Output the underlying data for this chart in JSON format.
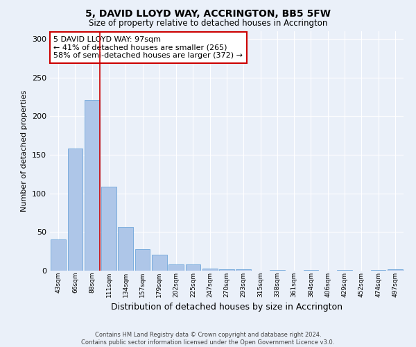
{
  "title": "5, DAVID LLOYD WAY, ACCRINGTON, BB5 5FW",
  "subtitle": "Size of property relative to detached houses in Accrington",
  "xlabel": "Distribution of detached houses by size in Accrington",
  "ylabel": "Number of detached properties",
  "categories": [
    "43sqm",
    "66sqm",
    "88sqm",
    "111sqm",
    "134sqm",
    "157sqm",
    "179sqm",
    "202sqm",
    "225sqm",
    "247sqm",
    "270sqm",
    "293sqm",
    "315sqm",
    "338sqm",
    "361sqm",
    "384sqm",
    "406sqm",
    "429sqm",
    "452sqm",
    "474sqm",
    "497sqm"
  ],
  "values": [
    40,
    158,
    221,
    109,
    57,
    28,
    21,
    8,
    8,
    3,
    2,
    2,
    0,
    1,
    0,
    1,
    0,
    1,
    0,
    1,
    2
  ],
  "bar_color": "#aec6e8",
  "bar_edge_color": "#5b9bd5",
  "highlight_line_color": "#cc0000",
  "annotation_text": "5 DAVID LLOYD WAY: 97sqm\n← 41% of detached houses are smaller (265)\n58% of semi-detached houses are larger (372) →",
  "annotation_box_color": "#ffffff",
  "annotation_box_edge_color": "#cc0000",
  "ylim": [
    0,
    310
  ],
  "yticks": [
    0,
    50,
    100,
    150,
    200,
    250,
    300
  ],
  "background_color": "#eaf0f9",
  "grid_color": "#ffffff",
  "footer": "Contains HM Land Registry data © Crown copyright and database right 2024.\nContains public sector information licensed under the Open Government Licence v3.0."
}
